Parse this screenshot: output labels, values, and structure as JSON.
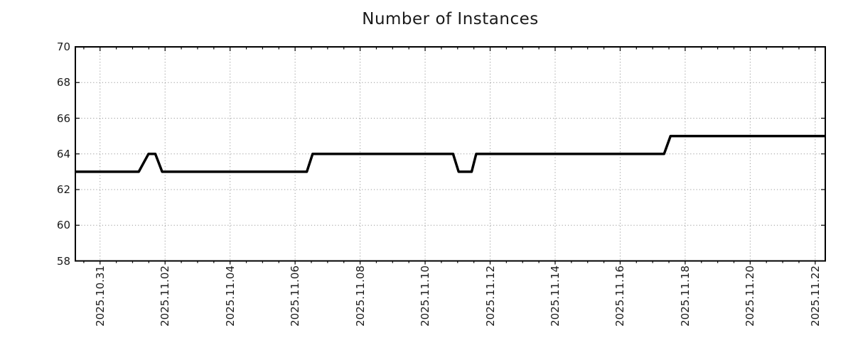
{
  "chart_data": {
    "type": "line",
    "title": "Number of Instances",
    "x_axis": {
      "tick_labels": [
        "2025.10.31",
        "2025.11.02",
        "2025.11.04",
        "2025.11.06",
        "2025.11.08",
        "2025.11.10",
        "2025.11.12",
        "2025.11.14",
        "2025.11.16",
        "2025.11.18",
        "2025.11.20",
        "2025.11.22"
      ],
      "tick_positions_days": [
        0,
        2,
        4,
        6,
        8,
        10,
        12,
        14,
        16,
        18,
        20,
        22
      ],
      "minor_tick_interval_days": 0.5,
      "xlim_days": [
        -0.76,
        22.31
      ],
      "day_zero_label": "2025.10.31"
    },
    "y_axis": {
      "tick_labels": [
        "58",
        "60",
        "62",
        "64",
        "66",
        "68",
        "70"
      ],
      "ticks": [
        58,
        60,
        62,
        64,
        66,
        68,
        70
      ],
      "ylim": [
        58,
        70
      ]
    },
    "grid": true,
    "legend_position": "none",
    "series": [
      {
        "name": "number-of-instances",
        "color": "#000000",
        "points_day_value": [
          [
            -0.76,
            63
          ],
          [
            1.19,
            63
          ],
          [
            1.49,
            64
          ],
          [
            1.7,
            64
          ],
          [
            1.91,
            63
          ],
          [
            6.36,
            63
          ],
          [
            6.54,
            64
          ],
          [
            10.86,
            64
          ],
          [
            11.03,
            63
          ],
          [
            11.43,
            63
          ],
          [
            11.57,
            64
          ],
          [
            17.35,
            64
          ],
          [
            17.55,
            65
          ],
          [
            22.31,
            65
          ]
        ]
      }
    ]
  },
  "colors": {
    "background": "#ffffff",
    "line": "#000000",
    "grid": "#9a9a9a",
    "axis": "#000000",
    "text": "#1a1a1a"
  }
}
